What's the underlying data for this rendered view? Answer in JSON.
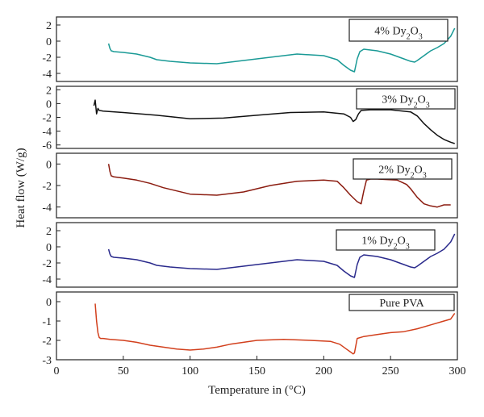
{
  "chart_data": {
    "type": "line",
    "x_label": "Temperature in (°C)",
    "y_label": "Heat flow (W/g)",
    "x_range": [
      0,
      300
    ],
    "x_ticks": [
      0,
      50,
      100,
      150,
      200,
      250,
      300
    ],
    "grid": false,
    "legend_placement": "top-right of each panel",
    "panels": [
      {
        "legend": {
          "base": "4% Dy",
          "sub1": "2",
          "mid": "O",
          "sub2": "3"
        },
        "color": "#1a9a96",
        "y_range": [
          -5,
          3
        ],
        "y_ticks": [
          2,
          0,
          -2,
          -4
        ],
        "x": [
          39,
          40,
          41,
          43,
          50,
          60,
          70,
          75,
          80,
          85,
          100,
          120,
          150,
          180,
          200,
          210,
          215,
          220,
          223,
          225,
          227,
          230,
          240,
          250,
          260,
          265,
          268,
          270,
          275,
          280,
          285,
          290,
          295,
          298
        ],
        "y": [
          -0.3,
          -0.9,
          -1.2,
          -1.3,
          -1.4,
          -1.6,
          -2.0,
          -2.3,
          -2.4,
          -2.5,
          -2.7,
          -2.8,
          -2.2,
          -1.6,
          -1.8,
          -2.3,
          -3.0,
          -3.6,
          -3.8,
          -2.2,
          -1.3,
          -1.0,
          -1.2,
          -1.6,
          -2.2,
          -2.5,
          -2.6,
          -2.4,
          -1.8,
          -1.2,
          -0.8,
          -0.3,
          0.6,
          1.6
        ]
      },
      {
        "legend": {
          "base": "3% Dy",
          "sub1": "2",
          "mid": "O",
          "sub2": "3"
        },
        "color": "#111111",
        "y_range": [
          -6.5,
          2.5
        ],
        "y_ticks": [
          2,
          0,
          -2,
          -4,
          -6
        ],
        "x": [
          28,
          29,
          30,
          31,
          32,
          35,
          50,
          75,
          100,
          125,
          150,
          175,
          200,
          215,
          220,
          222,
          224,
          226,
          228,
          235,
          250,
          265,
          270,
          275,
          280,
          285,
          290,
          295,
          298
        ],
        "y": [
          -0.3,
          0.5,
          -1.5,
          -0.7,
          -1.0,
          -1.1,
          -1.3,
          -1.7,
          -2.2,
          -2.1,
          -1.7,
          -1.3,
          -1.2,
          -1.5,
          -2.0,
          -2.6,
          -2.3,
          -1.5,
          -1.0,
          -0.9,
          -0.9,
          -1.2,
          -1.8,
          -2.9,
          -3.8,
          -4.6,
          -5.2,
          -5.6,
          -5.8
        ]
      },
      {
        "legend": {
          "base": "2% Dy",
          "sub1": "2",
          "mid": "O",
          "sub2": "3"
        },
        "color": "#8b1c10",
        "y_range": [
          -5,
          1
        ],
        "y_ticks": [
          0,
          -2,
          -4
        ],
        "x": [
          39,
          40,
          41,
          43,
          50,
          60,
          70,
          80,
          90,
          100,
          120,
          140,
          160,
          180,
          200,
          210,
          215,
          220,
          225,
          228,
          230,
          232,
          235,
          240,
          255,
          262,
          265,
          270,
          275,
          280,
          285,
          290,
          295
        ],
        "y": [
          0,
          -0.7,
          -1.1,
          -1.2,
          -1.3,
          -1.5,
          -1.8,
          -2.2,
          -2.5,
          -2.8,
          -2.9,
          -2.6,
          -2.0,
          -1.6,
          -1.5,
          -1.6,
          -2.2,
          -2.9,
          -3.5,
          -3.7,
          -2.5,
          -1.5,
          -1.4,
          -1.4,
          -1.5,
          -1.9,
          -2.3,
          -3.1,
          -3.7,
          -3.9,
          -4.0,
          -3.8,
          -3.8
        ]
      },
      {
        "legend": {
          "base": "1% Dy",
          "sub1": "2",
          "mid": "O",
          "sub2": "3"
        },
        "color": "#2a2a8c",
        "y_range": [
          -5,
          3
        ],
        "y_ticks": [
          2,
          0,
          -2,
          -4
        ],
        "x": [
          39,
          40,
          41,
          43,
          50,
          60,
          70,
          75,
          80,
          85,
          100,
          120,
          150,
          180,
          200,
          210,
          215,
          220,
          223,
          225,
          227,
          230,
          240,
          250,
          260,
          265,
          268,
          270,
          275,
          280,
          285,
          290,
          295,
          298
        ],
        "y": [
          -0.3,
          -0.9,
          -1.2,
          -1.3,
          -1.4,
          -1.6,
          -2.0,
          -2.3,
          -2.4,
          -2.5,
          -2.7,
          -2.8,
          -2.2,
          -1.6,
          -1.8,
          -2.3,
          -3.0,
          -3.6,
          -3.8,
          -2.2,
          -1.3,
          -1.0,
          -1.2,
          -1.6,
          -2.2,
          -2.5,
          -2.6,
          -2.4,
          -1.8,
          -1.2,
          -0.8,
          -0.3,
          0.6,
          1.6
        ]
      },
      {
        "legend": {
          "base": "Pure PVA",
          "sub1": "",
          "mid": "",
          "sub2": ""
        },
        "color": "#d2401d",
        "y_range": [
          -3,
          0.5
        ],
        "y_ticks": [
          0,
          -1,
          -2,
          -3
        ],
        "x": [
          29,
          30,
          31,
          32,
          33,
          35,
          40,
          50,
          60,
          70,
          80,
          90,
          100,
          110,
          120,
          130,
          140,
          150,
          170,
          190,
          205,
          212,
          217,
          220,
          222,
          223,
          225,
          230,
          240,
          250,
          260,
          270,
          280,
          290,
          295,
          298
        ],
        "y": [
          -0.1,
          -1.0,
          -1.6,
          -1.85,
          -1.9,
          -1.9,
          -1.95,
          -2.0,
          -2.1,
          -2.25,
          -2.35,
          -2.45,
          -2.5,
          -2.45,
          -2.35,
          -2.2,
          -2.1,
          -2.0,
          -1.95,
          -2.0,
          -2.05,
          -2.2,
          -2.45,
          -2.6,
          -2.7,
          -2.65,
          -1.9,
          -1.8,
          -1.7,
          -1.6,
          -1.55,
          -1.4,
          -1.2,
          -1.0,
          -0.9,
          -0.6
        ]
      }
    ]
  }
}
